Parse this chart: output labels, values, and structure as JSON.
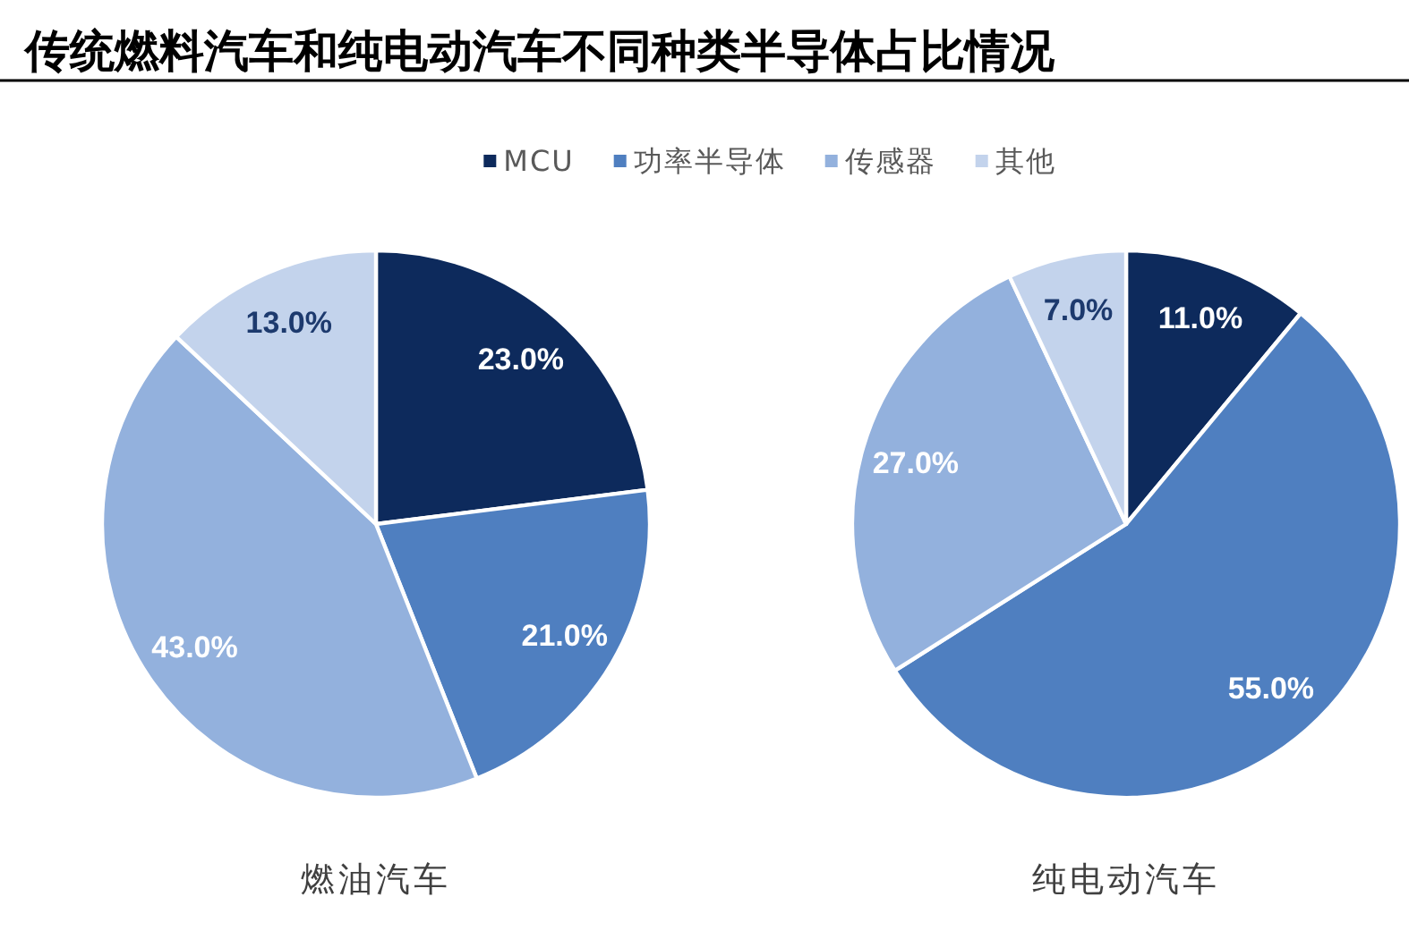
{
  "chart_data": {
    "type": "pie",
    "title": "传统燃料汽车和纯电动汽车不同种类半导体占比情况",
    "categories": [
      "MCU",
      "功率半导体",
      "传感器",
      "其他"
    ],
    "colors": [
      "#0d2a5c",
      "#4f7fc0",
      "#93b1dd",
      "#c3d3ec"
    ],
    "legend": "top",
    "series": [
      {
        "name": "燃油汽车",
        "values": [
          23,
          21,
          43,
          13
        ],
        "value_labels": [
          "23.0%",
          "21.0%",
          "43.0%",
          "13.0%"
        ]
      },
      {
        "name": "纯电动汽车",
        "values": [
          11,
          55,
          27,
          7
        ],
        "value_labels": [
          "11.0%",
          "55.0%",
          "27.0%",
          "7.0%"
        ]
      }
    ]
  }
}
